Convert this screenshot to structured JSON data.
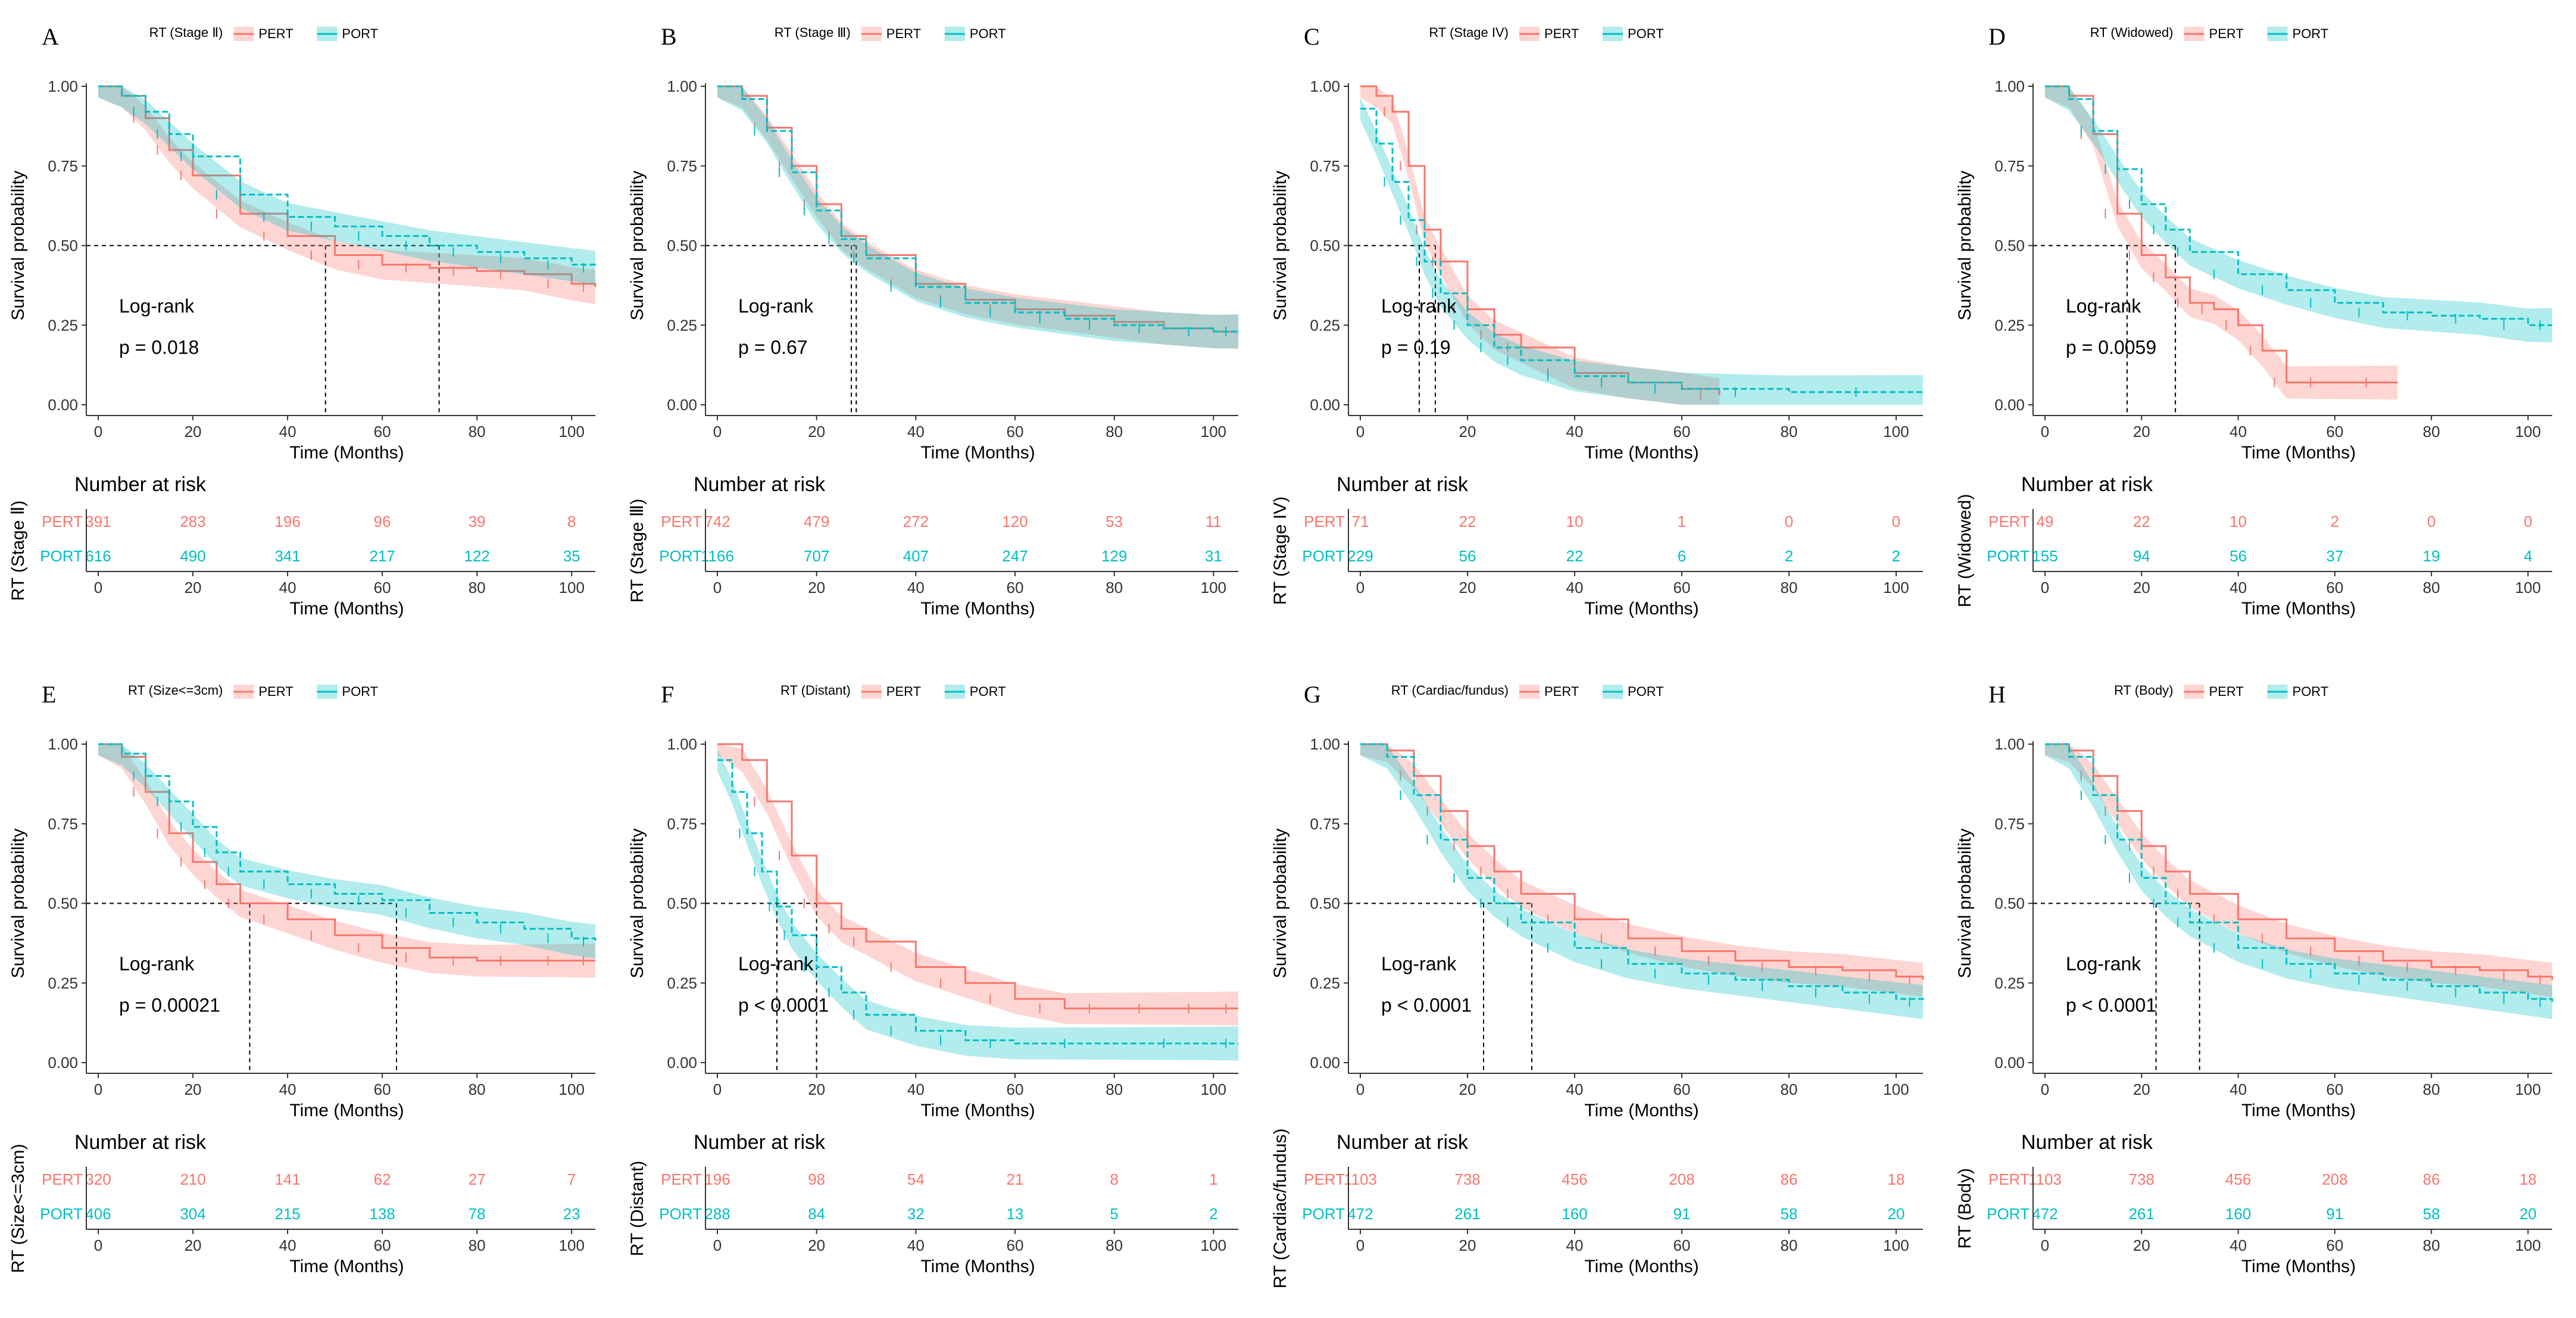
{
  "figure": {
    "legend_prefix": "RT",
    "common": {
      "xlabel": "Time (Months)",
      "ylabel": "Survival probability",
      "xticks": [
        0,
        20,
        40,
        60,
        80,
        100
      ],
      "yticks": [
        "0.00",
        "0.25",
        "0.50",
        "0.75",
        "1.00"
      ],
      "risk_title": "Number at risk",
      "logrank_label": "Log-rank",
      "groups": [
        "PERT",
        "PORT"
      ]
    },
    "colors": {
      "PERT": "#F8766D",
      "PORT": "#00BFC4",
      "axis": "#333333"
    }
  },
  "chart_data": [
    {
      "type": "line",
      "panel": "A",
      "stratum": "(Stage Ⅱ)",
      "risk_axis_label": "RT (Stage Ⅱ)",
      "xlim": [
        0,
        105
      ],
      "ylim": [
        0,
        1
      ],
      "pvalue": "p = 0.018",
      "median": {
        "PERT": 48,
        "PORT": 72
      },
      "xlabel": "Time (Months)",
      "ylabel": "Survival probability",
      "series": [
        {
          "name": "PERT",
          "x": [
            0,
            5,
            10,
            15,
            20,
            30,
            40,
            50,
            60,
            70,
            80,
            90,
            100,
            105
          ],
          "y": [
            1,
            0.97,
            0.9,
            0.8,
            0.72,
            0.6,
            0.53,
            0.47,
            0.44,
            0.43,
            0.42,
            0.41,
            0.38,
            0.37
          ]
        },
        {
          "name": "PORT",
          "x": [
            0,
            5,
            10,
            15,
            20,
            30,
            40,
            50,
            60,
            70,
            80,
            90,
            100,
            105
          ],
          "y": [
            1,
            0.97,
            0.92,
            0.85,
            0.78,
            0.66,
            0.59,
            0.56,
            0.53,
            0.5,
            0.48,
            0.46,
            0.44,
            0.43
          ]
        }
      ],
      "risk": {
        "times": [
          0,
          20,
          40,
          60,
          80,
          100
        ],
        "PERT": [
          391,
          283,
          196,
          96,
          39,
          8
        ],
        "PORT": [
          616,
          490,
          341,
          217,
          122,
          35
        ]
      }
    },
    {
      "type": "line",
      "panel": "B",
      "stratum": "(Stage Ⅲ)",
      "risk_axis_label": "RT (Stage Ⅲ)",
      "xlim": [
        0,
        105
      ],
      "ylim": [
        0,
        1
      ],
      "pvalue": "p = 0.67",
      "median": {
        "PERT": 28,
        "PORT": 27
      },
      "xlabel": "Time (Months)",
      "ylabel": "Survival probability",
      "series": [
        {
          "name": "PERT",
          "x": [
            0,
            5,
            10,
            15,
            20,
            25,
            30,
            40,
            50,
            60,
            70,
            80,
            90,
            100,
            105
          ],
          "y": [
            1,
            0.97,
            0.87,
            0.75,
            0.63,
            0.53,
            0.47,
            0.38,
            0.33,
            0.3,
            0.28,
            0.26,
            0.24,
            0.23,
            0.23
          ]
        },
        {
          "name": "PORT",
          "x": [
            0,
            5,
            10,
            15,
            20,
            25,
            30,
            40,
            50,
            60,
            70,
            80,
            90,
            100,
            105
          ],
          "y": [
            1,
            0.96,
            0.86,
            0.73,
            0.61,
            0.52,
            0.46,
            0.37,
            0.32,
            0.29,
            0.27,
            0.25,
            0.24,
            0.23,
            0.23
          ]
        }
      ],
      "risk": {
        "times": [
          0,
          20,
          40,
          60,
          80,
          100
        ],
        "PERT": [
          742,
          479,
          272,
          120,
          53,
          11
        ],
        "PORT": [
          1166,
          707,
          407,
          247,
          129,
          31
        ]
      }
    },
    {
      "type": "line",
      "panel": "C",
      "stratum": "(Stage IV)",
      "risk_axis_label": "RT (Stage IV)",
      "xlim": [
        0,
        105
      ],
      "ylim": [
        0,
        1
      ],
      "pvalue": "p = 0.19",
      "median": {
        "PERT": 14,
        "PORT": 11
      },
      "xlabel": "Time (Months)",
      "ylabel": "Survival probability",
      "series": [
        {
          "name": "PERT",
          "x": [
            0,
            3,
            6,
            9,
            12,
            15,
            20,
            25,
            30,
            40,
            50,
            60,
            67
          ],
          "y": [
            1,
            0.97,
            0.92,
            0.75,
            0.55,
            0.45,
            0.3,
            0.22,
            0.18,
            0.1,
            0.07,
            0.05,
            0.03
          ]
        },
        {
          "name": "PORT",
          "x": [
            0,
            3,
            6,
            9,
            12,
            15,
            20,
            25,
            30,
            40,
            50,
            60,
            80,
            105
          ],
          "y": [
            0.93,
            0.82,
            0.7,
            0.58,
            0.45,
            0.35,
            0.25,
            0.18,
            0.14,
            0.09,
            0.07,
            0.05,
            0.04,
            0.04
          ]
        }
      ],
      "risk": {
        "times": [
          0,
          20,
          40,
          60,
          80,
          100
        ],
        "PERT": [
          71,
          22,
          10,
          1,
          0,
          0
        ],
        "PORT": [
          229,
          56,
          22,
          6,
          2,
          2
        ]
      }
    },
    {
      "type": "line",
      "panel": "D",
      "stratum": "(Widowed)",
      "risk_axis_label": "RT (Widowed)",
      "xlim": [
        0,
        105
      ],
      "ylim": [
        0,
        1
      ],
      "pvalue": "p = 0.0059",
      "median": {
        "PERT": 17,
        "PORT": 27
      },
      "xlabel": "Time (Months)",
      "ylabel": "Survival probability",
      "series": [
        {
          "name": "PERT",
          "x": [
            0,
            5,
            10,
            15,
            20,
            25,
            30,
            35,
            40,
            45,
            50,
            60,
            73
          ],
          "y": [
            1,
            0.97,
            0.85,
            0.6,
            0.47,
            0.4,
            0.32,
            0.3,
            0.25,
            0.17,
            0.07,
            0.07,
            0.07
          ]
        },
        {
          "name": "PORT",
          "x": [
            0,
            5,
            10,
            15,
            20,
            25,
            30,
            40,
            50,
            60,
            70,
            80,
            90,
            100,
            105
          ],
          "y": [
            1,
            0.96,
            0.86,
            0.74,
            0.63,
            0.55,
            0.48,
            0.41,
            0.36,
            0.32,
            0.29,
            0.28,
            0.27,
            0.25,
            0.25
          ]
        }
      ],
      "risk": {
        "times": [
          0,
          20,
          40,
          60,
          80,
          100
        ],
        "PERT": [
          49,
          22,
          10,
          2,
          0,
          0
        ],
        "PORT": [
          155,
          94,
          56,
          37,
          19,
          4
        ]
      }
    },
    {
      "type": "line",
      "panel": "E",
      "stratum": "(Size<=3cm)",
      "risk_axis_label": "RT (Size<=3cm)",
      "xlim": [
        0,
        105
      ],
      "ylim": [
        0,
        1
      ],
      "pvalue": "p = 0.00021",
      "median": {
        "PERT": 32,
        "PORT": 63
      },
      "xlabel": "Time (Months)",
      "ylabel": "Survival probability",
      "series": [
        {
          "name": "PERT",
          "x": [
            0,
            5,
            10,
            15,
            20,
            25,
            30,
            40,
            50,
            60,
            70,
            80,
            90,
            100,
            105
          ],
          "y": [
            1,
            0.96,
            0.85,
            0.72,
            0.63,
            0.56,
            0.5,
            0.45,
            0.4,
            0.36,
            0.33,
            0.32,
            0.32,
            0.32,
            0.32
          ]
        },
        {
          "name": "PORT",
          "x": [
            0,
            5,
            10,
            15,
            20,
            25,
            30,
            40,
            50,
            60,
            70,
            80,
            90,
            100,
            105
          ],
          "y": [
            1,
            0.97,
            0.9,
            0.82,
            0.74,
            0.66,
            0.6,
            0.56,
            0.53,
            0.51,
            0.47,
            0.44,
            0.42,
            0.39,
            0.38
          ]
        }
      ],
      "risk": {
        "times": [
          0,
          20,
          40,
          60,
          80,
          100
        ],
        "PERT": [
          320,
          210,
          141,
          62,
          27,
          7
        ],
        "PORT": [
          406,
          304,
          215,
          138,
          78,
          23
        ]
      }
    },
    {
      "type": "line",
      "panel": "F",
      "stratum": "(Distant)",
      "risk_axis_label": "RT (Distant)",
      "xlim": [
        0,
        105
      ],
      "ylim": [
        0,
        1
      ],
      "pvalue": "p < 0.0001",
      "median": {
        "PERT": 20,
        "PORT": 12
      },
      "xlabel": "Time (Months)",
      "ylabel": "Survival probability",
      "series": [
        {
          "name": "PERT",
          "x": [
            0,
            5,
            10,
            15,
            20,
            25,
            30,
            40,
            50,
            60,
            70,
            80,
            90,
            100,
            105
          ],
          "y": [
            1,
            0.95,
            0.82,
            0.65,
            0.5,
            0.42,
            0.38,
            0.3,
            0.25,
            0.2,
            0.17,
            0.17,
            0.17,
            0.17,
            0.17
          ]
        },
        {
          "name": "PORT",
          "x": [
            0,
            3,
            6,
            9,
            12,
            15,
            20,
            25,
            30,
            40,
            50,
            60,
            80,
            100,
            105
          ],
          "y": [
            0.95,
            0.85,
            0.72,
            0.6,
            0.49,
            0.4,
            0.3,
            0.22,
            0.15,
            0.1,
            0.07,
            0.06,
            0.06,
            0.06,
            0.06
          ]
        }
      ],
      "risk": {
        "times": [
          0,
          20,
          40,
          60,
          80,
          100
        ],
        "PERT": [
          196,
          98,
          54,
          21,
          8,
          1
        ],
        "PORT": [
          288,
          84,
          32,
          13,
          5,
          2
        ]
      }
    },
    {
      "type": "line",
      "panel": "G",
      "stratum": "(Cardiac/fundus)",
      "risk_axis_label": "RT (Cardiac/fundus)",
      "xlim": [
        0,
        105
      ],
      "ylim": [
        0,
        1
      ],
      "pvalue": "p < 0.0001",
      "median": {
        "PERT": 32,
        "PORT": 23
      },
      "xlabel": "Time (Months)",
      "ylabel": "Survival probability",
      "series": [
        {
          "name": "PERT",
          "x": [
            0,
            5,
            10,
            15,
            20,
            25,
            30,
            40,
            50,
            60,
            70,
            80,
            90,
            100,
            105
          ],
          "y": [
            1,
            0.98,
            0.9,
            0.79,
            0.68,
            0.6,
            0.53,
            0.45,
            0.39,
            0.35,
            0.32,
            0.3,
            0.29,
            0.27,
            0.26
          ]
        },
        {
          "name": "PORT",
          "x": [
            0,
            5,
            10,
            15,
            20,
            25,
            30,
            40,
            50,
            60,
            70,
            80,
            90,
            100,
            105
          ],
          "y": [
            1,
            0.96,
            0.84,
            0.7,
            0.58,
            0.5,
            0.44,
            0.36,
            0.31,
            0.28,
            0.26,
            0.24,
            0.22,
            0.2,
            0.19
          ]
        }
      ],
      "risk": {
        "times": [
          0,
          20,
          40,
          60,
          80,
          100
        ],
        "PERT": [
          1103,
          738,
          456,
          208,
          86,
          18
        ],
        "PORT": [
          472,
          261,
          160,
          91,
          58,
          20
        ]
      }
    },
    {
      "type": "line",
      "panel": "H",
      "stratum": "(Body)",
      "risk_axis_label": "RT (Body)",
      "xlim": [
        0,
        105
      ],
      "ylim": [
        0,
        1
      ],
      "pvalue": "p < 0.0001",
      "median": {
        "PERT": 32,
        "PORT": 23
      },
      "xlabel": "Time (Months)",
      "ylabel": "Survival probability",
      "series": [
        {
          "name": "PERT",
          "x": [
            0,
            5,
            10,
            15,
            20,
            25,
            30,
            40,
            50,
            60,
            70,
            80,
            90,
            100,
            105
          ],
          "y": [
            1,
            0.98,
            0.9,
            0.79,
            0.68,
            0.6,
            0.53,
            0.45,
            0.39,
            0.35,
            0.32,
            0.3,
            0.29,
            0.27,
            0.26
          ]
        },
        {
          "name": "PORT",
          "x": [
            0,
            5,
            10,
            15,
            20,
            25,
            30,
            40,
            50,
            60,
            70,
            80,
            90,
            100,
            105
          ],
          "y": [
            1,
            0.96,
            0.84,
            0.7,
            0.58,
            0.5,
            0.44,
            0.36,
            0.31,
            0.28,
            0.26,
            0.24,
            0.22,
            0.2,
            0.19
          ]
        }
      ],
      "risk": {
        "times": [
          0,
          20,
          40,
          60,
          80,
          100
        ],
        "PERT": [
          1103,
          738,
          456,
          208,
          86,
          18
        ],
        "PORT": [
          472,
          261,
          160,
          91,
          58,
          20
        ]
      }
    }
  ]
}
